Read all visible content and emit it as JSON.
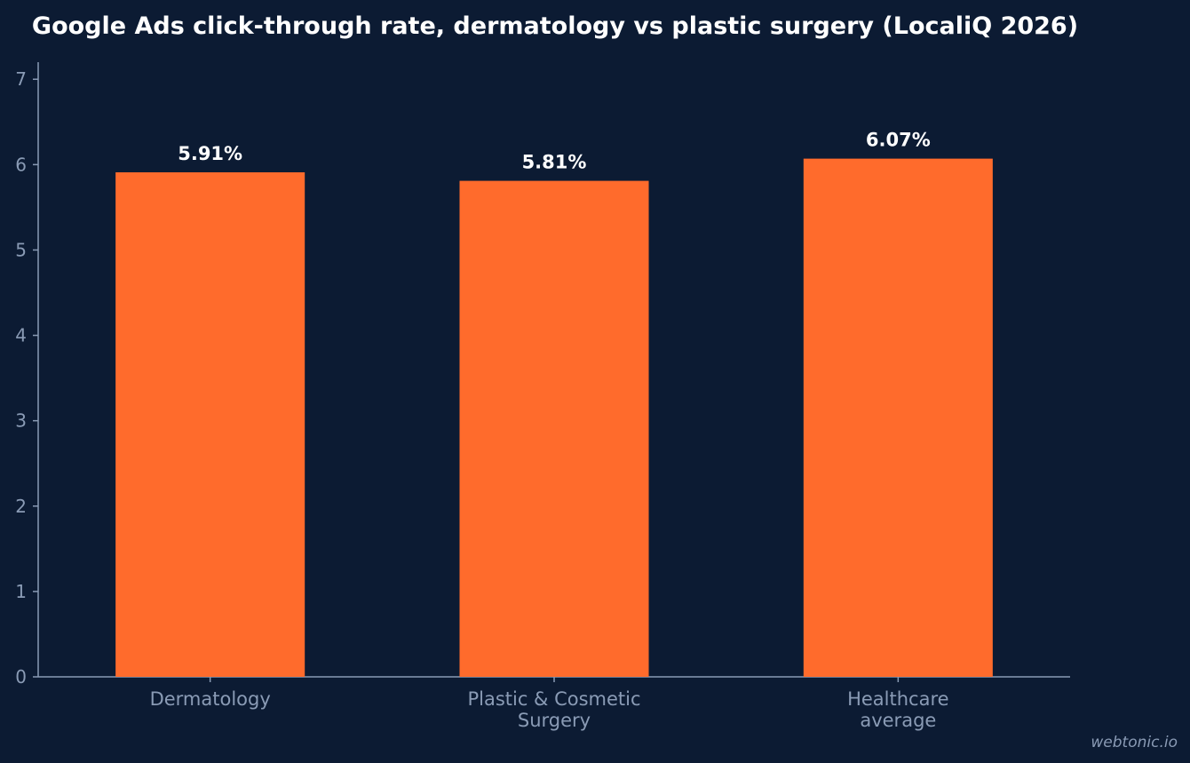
{
  "chart_data": {
    "type": "bar",
    "title": "Google Ads click-through rate, dermatology vs plastic surgery (LocaliQ 2026)",
    "xlabel": "",
    "ylabel": "",
    "categories": [
      [
        "Dermatology"
      ],
      [
        "Plastic & Cosmetic",
        "Surgery"
      ],
      [
        "Healthcare",
        "average"
      ]
    ],
    "values": [
      5.91,
      5.81,
      6.07
    ],
    "value_labels": [
      "5.91%",
      "5.81%",
      "6.07%"
    ],
    "ylim": [
      0,
      7.2
    ],
    "yticks": [
      0,
      1,
      2,
      3,
      4,
      5,
      6,
      7
    ],
    "grid": false,
    "bar_color": "#ff6b2c",
    "background_color": "#0c1b33"
  },
  "watermark": "webtonic.io"
}
